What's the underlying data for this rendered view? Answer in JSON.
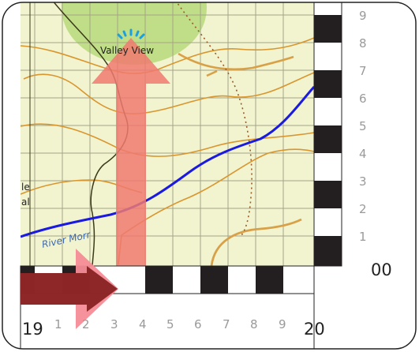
{
  "map": {
    "place_label": "Valley View",
    "river_label": "River Morr",
    "partial_label_line1": "le",
    "partial_label_line2": "al",
    "easting_major": "19",
    "easting_major_next": "20",
    "northing_major": "00",
    "easting_ticks": [
      "1",
      "2",
      "3",
      "4",
      "5",
      "6",
      "7",
      "8",
      "9"
    ],
    "northing_ticks": [
      "1",
      "2",
      "3",
      "4",
      "5",
      "6",
      "7",
      "8",
      "9"
    ]
  },
  "colors": {
    "land": "#f2f3cf",
    "grid": "#a3a48a",
    "contour": "#d9962e",
    "river": "#1a1ae0",
    "path": "#9b5a28",
    "road": "#3a3a1a",
    "green_area": "#b6d97a",
    "arrow_up": "#f07a70",
    "arrow_right_dark": "#7a1414",
    "arrow_right_light": "#f48c96",
    "place_icon": "#1aa0e0"
  },
  "icons": [
    "place-burst-icon"
  ]
}
